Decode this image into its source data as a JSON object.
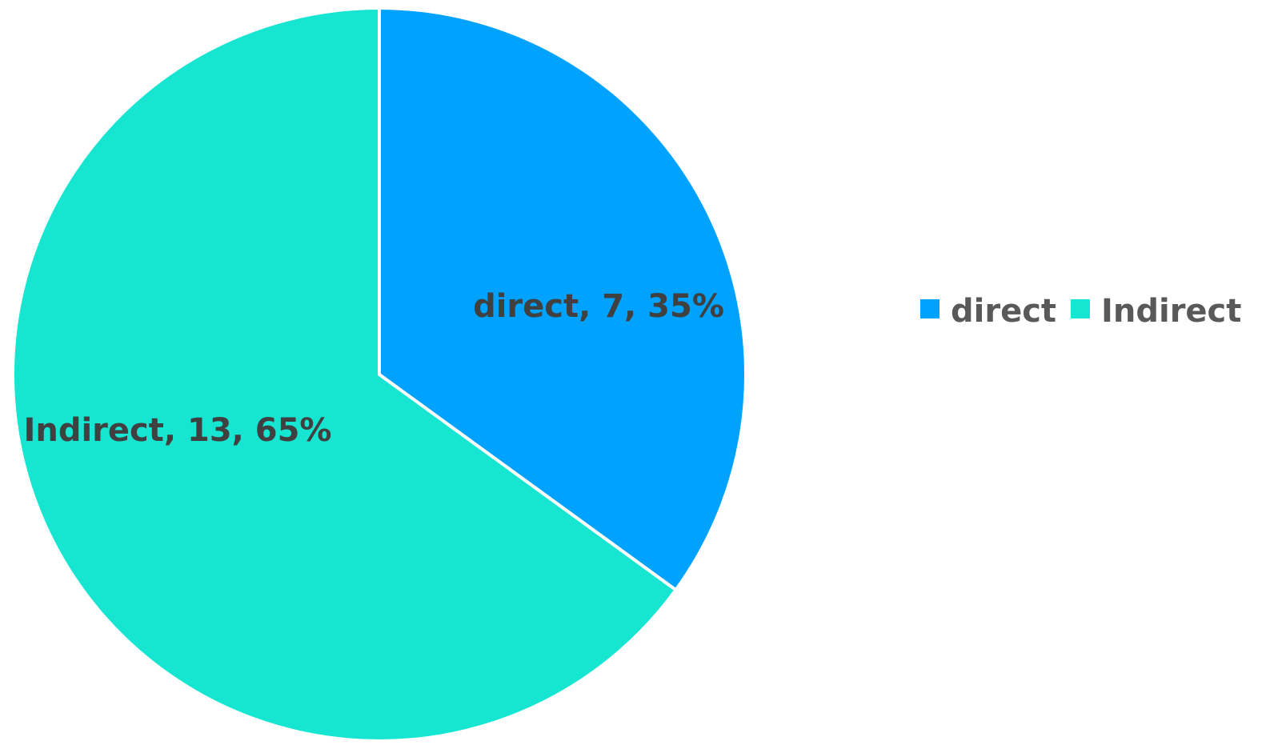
{
  "chart_data": {
    "type": "pie",
    "categories": [
      "direct",
      "Indirect"
    ],
    "values": [
      7,
      13
    ],
    "percentages": [
      35,
      65
    ],
    "colors": [
      "#00A2FF",
      "#16E6D1"
    ],
    "data_labels": [
      "direct, 7, 35%",
      "Indirect, 13, 65%"
    ],
    "legend": {
      "placement": "right",
      "entries": [
        "direct",
        "Indirect"
      ]
    },
    "title": "",
    "start_angle": "12 o'clock, clockwise"
  }
}
